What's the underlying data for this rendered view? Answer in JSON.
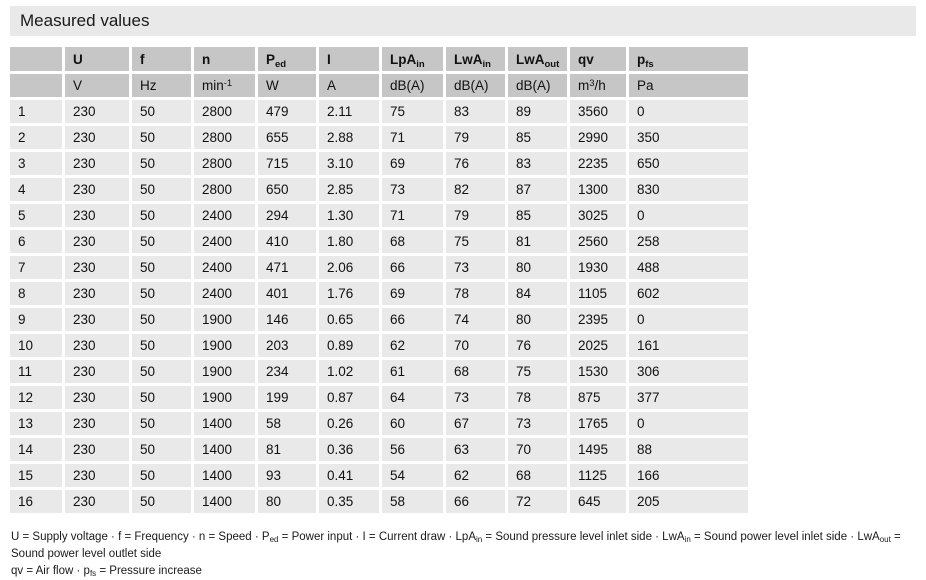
{
  "page": {
    "title": "Measured values"
  },
  "table": {
    "columns": [
      {
        "name": "row-number",
        "label": [],
        "unit": []
      },
      {
        "name": "U",
        "label": [
          {
            "t": "U"
          }
        ],
        "unit": [
          {
            "t": "V"
          }
        ]
      },
      {
        "name": "f",
        "label": [
          {
            "t": "f"
          }
        ],
        "unit": [
          {
            "t": "Hz"
          }
        ]
      },
      {
        "name": "n",
        "label": [
          {
            "t": "n"
          }
        ],
        "unit": [
          {
            "t": "min"
          },
          {
            "t": "-1",
            "sup": true
          }
        ]
      },
      {
        "name": "Ped",
        "label": [
          {
            "t": "P"
          },
          {
            "t": "ed",
            "sub": true
          }
        ],
        "unit": [
          {
            "t": "W"
          }
        ]
      },
      {
        "name": "I",
        "label": [
          {
            "t": "I"
          }
        ],
        "unit": [
          {
            "t": "A"
          }
        ]
      },
      {
        "name": "LpAin",
        "label": [
          {
            "t": "LpA"
          },
          {
            "t": "in",
            "sub": true
          }
        ],
        "unit": [
          {
            "t": "dB(A)"
          }
        ]
      },
      {
        "name": "LwAin",
        "label": [
          {
            "t": "LwA"
          },
          {
            "t": "in",
            "sub": true
          }
        ],
        "unit": [
          {
            "t": "dB(A)"
          }
        ]
      },
      {
        "name": "LwAout",
        "label": [
          {
            "t": "LwA"
          },
          {
            "t": "out",
            "sub": true
          }
        ],
        "unit": [
          {
            "t": "dB(A)"
          }
        ]
      },
      {
        "name": "qv",
        "label": [
          {
            "t": "qv"
          }
        ],
        "unit": [
          {
            "t": "m"
          },
          {
            "t": "3",
            "sup": true
          },
          {
            "t": "/h"
          }
        ]
      },
      {
        "name": "pfs",
        "label": [
          {
            "t": "p"
          },
          {
            "t": "fs",
            "sub": true
          }
        ],
        "unit": [
          {
            "t": "Pa"
          }
        ]
      }
    ],
    "rows": [
      [
        "1",
        "230",
        "50",
        "2800",
        "479",
        "2.11",
        "75",
        "83",
        "89",
        "3560",
        "0"
      ],
      [
        "2",
        "230",
        "50",
        "2800",
        "655",
        "2.88",
        "71",
        "79",
        "85",
        "2990",
        "350"
      ],
      [
        "3",
        "230",
        "50",
        "2800",
        "715",
        "3.10",
        "69",
        "76",
        "83",
        "2235",
        "650"
      ],
      [
        "4",
        "230",
        "50",
        "2800",
        "650",
        "2.85",
        "73",
        "82",
        "87",
        "1300",
        "830"
      ],
      [
        "5",
        "230",
        "50",
        "2400",
        "294",
        "1.30",
        "71",
        "79",
        "85",
        "3025",
        "0"
      ],
      [
        "6",
        "230",
        "50",
        "2400",
        "410",
        "1.80",
        "68",
        "75",
        "81",
        "2560",
        "258"
      ],
      [
        "7",
        "230",
        "50",
        "2400",
        "471",
        "2.06",
        "66",
        "73",
        "80",
        "1930",
        "488"
      ],
      [
        "8",
        "230",
        "50",
        "2400",
        "401",
        "1.76",
        "69",
        "78",
        "84",
        "1105",
        "602"
      ],
      [
        "9",
        "230",
        "50",
        "1900",
        "146",
        "0.65",
        "66",
        "74",
        "80",
        "2395",
        "0"
      ],
      [
        "10",
        "230",
        "50",
        "1900",
        "203",
        "0.89",
        "62",
        "70",
        "76",
        "2025",
        "161"
      ],
      [
        "11",
        "230",
        "50",
        "1900",
        "234",
        "1.02",
        "61",
        "68",
        "75",
        "1530",
        "306"
      ],
      [
        "12",
        "230",
        "50",
        "1900",
        "199",
        "0.87",
        "64",
        "73",
        "78",
        "875",
        "377"
      ],
      [
        "13",
        "230",
        "50",
        "1400",
        "58",
        "0.26",
        "60",
        "67",
        "73",
        "1765",
        "0"
      ],
      [
        "14",
        "230",
        "50",
        "1400",
        "81",
        "0.36",
        "56",
        "63",
        "70",
        "1495",
        "88"
      ],
      [
        "15",
        "230",
        "50",
        "1400",
        "93",
        "0.41",
        "54",
        "62",
        "68",
        "1125",
        "166"
      ],
      [
        "16",
        "230",
        "50",
        "1400",
        "80",
        "0.35",
        "58",
        "66",
        "72",
        "645",
        "205"
      ]
    ]
  },
  "legend": {
    "line1": [
      {
        "t": "U = Supply voltage  · f = Frequency  · n = Speed  · P"
      },
      {
        "t": "ed",
        "sub": true
      },
      {
        "t": " = Power input  · I = Current draw  · LpA"
      },
      {
        "t": "in",
        "sub": true
      },
      {
        "t": " = Sound pressure level inlet side  · LwA"
      },
      {
        "t": "in",
        "sub": true
      },
      {
        "t": " = Sound power level inlet side  · LwA"
      },
      {
        "t": "out",
        "sub": true
      },
      {
        "t": " = Sound power level outlet side"
      }
    ],
    "line2": [
      {
        "t": "qv = Air flow  · p"
      },
      {
        "t": "fs",
        "sub": true
      },
      {
        "t": " = Pressure increase"
      }
    ]
  },
  "colors": {
    "title_bg": "#e9e9e9",
    "header_cell_bg": "#c6c6c6",
    "body_cell_bg": "#e9e9e9",
    "text": "#1a1a1a"
  }
}
